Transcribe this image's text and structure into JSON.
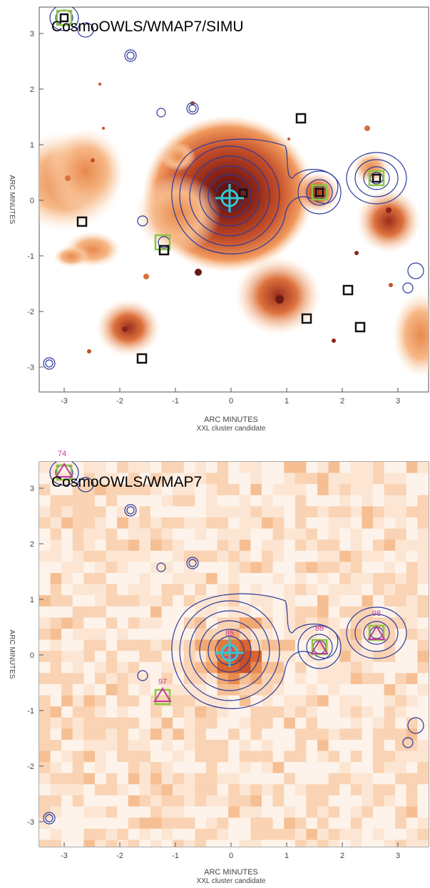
{
  "panels": [
    {
      "title": "CosmoOWLS/WMAP7/SIMU",
      "x_axis_label": "ARC  MINUTES",
      "x_axis_sublabel": "XXL cluster candidate",
      "y_axis_label": "ARC  MINUTES",
      "x_ticks": [
        "-3",
        "-2",
        "-1",
        "0",
        "1",
        "2",
        "3"
      ],
      "y_ticks": [
        "3",
        "2",
        "1",
        "0",
        "-1",
        "-2",
        "-3"
      ],
      "annotations": []
    },
    {
      "title": "CosmoOWLS/WMAP7",
      "x_axis_label": "ARC  MINUTES",
      "x_axis_sublabel": "XXL cluster candidate",
      "y_axis_label": "ARC  MINUTES",
      "x_ticks": [
        "-3",
        "-2",
        "-1",
        "0",
        "1",
        "2",
        "3"
      ],
      "y_ticks": [
        "3",
        "2",
        "1",
        "0",
        "-1",
        "-2",
        "-3"
      ],
      "annotations": [
        "74",
        "85",
        "88",
        "98",
        "97"
      ]
    }
  ],
  "colors": {
    "contour": "#2b3a9a",
    "crosshair": "#33c7d6",
    "square_green": "#8ec63f",
    "square_black": "#111111",
    "annotation": "#c03b9c",
    "heat_dark": "#4a0e0e",
    "heat_mid": "#c6502a",
    "heat_light": "#f7b47c"
  }
}
